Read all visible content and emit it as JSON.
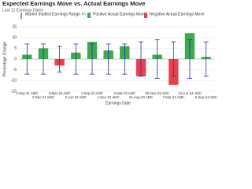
{
  "chart_data": {
    "type": "bar",
    "title": "Expected Earnings Move vs. Actual Earnings Move",
    "subtitle": "Last 12 Earnings Dates",
    "x_label": "Earnings Date",
    "y_label": "Percentage Change",
    "categories": [
      "2-Sep-21 AMC",
      "2-Dec-21 AMC",
      "3-Mar-22 AMC",
      "2-Jun-22 AMC",
      "1-Sep-22 AMC",
      "1-Dec-22 AMC",
      "2-Mar-23 AMC",
      "31-Aug-23 AMC",
      "30-Nov-23 AMC",
      "7-Mar-24 AMC",
      "13-Jun-24 AMC",
      "5-Sep-24 AMC"
    ],
    "range": {
      "name": "Market Implied Earnings Range +/-",
      "color": "#2a2aa8",
      "values": [
        7,
        7,
        6,
        7,
        7,
        7,
        7,
        8,
        9,
        8,
        9,
        8
      ]
    },
    "series": [
      {
        "name": "Positive Actual Earnings Move",
        "color": "#3daa4f",
        "values": [
          2,
          5,
          null,
          3,
          8,
          4,
          6,
          null,
          2,
          null,
          12,
          1
        ]
      },
      {
        "name": "Negative Actual Earnings Move",
        "color": "#e8414e",
        "values": [
          null,
          null,
          -3,
          null,
          null,
          null,
          null,
          -8,
          null,
          -12,
          null,
          null
        ]
      }
    ],
    "ylim": [
      -15,
      15
    ],
    "yticks": [
      -15,
      -10,
      -5,
      0,
      5,
      10,
      15
    ],
    "grid": true
  }
}
